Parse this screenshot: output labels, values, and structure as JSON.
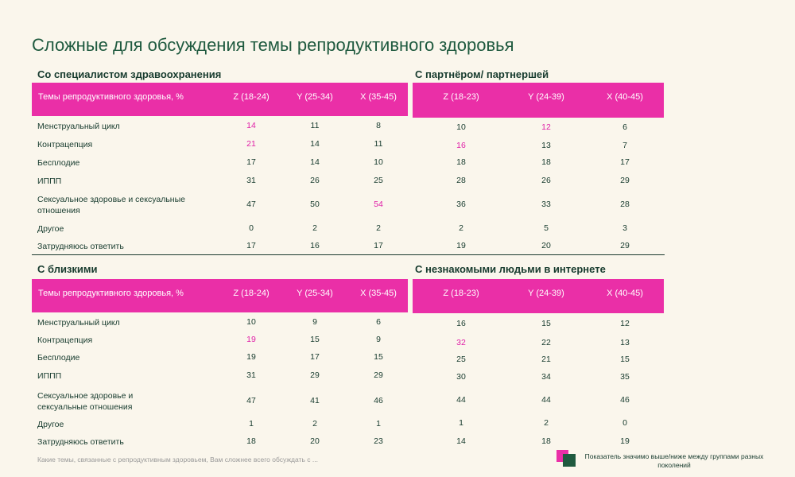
{
  "page": {
    "title": "Сложные для обсуждения темы репродуктивного здоровья",
    "footnote": "Какие темы, связанные с репродуктивным здоровьем, Вам сложнее всего обсуждать с ...",
    "legend_text": "Показатель значимо выше/ниже между группами разных поколений",
    "colors": {
      "header_bg": "#ea2fa7",
      "highlight": "#e020a8",
      "text": "#173b2e",
      "background": "#faf6ec"
    }
  },
  "labels": {
    "topic_header": "Темы репродуктивного здоровья, %",
    "health_rows": [
      "Менструальный цикл",
      "Контрацепция",
      "Бесплодие",
      "ИППП",
      "Сексуальное здоровье и сексуальные отношения",
      "Другое",
      "Затрудняюсь ответить"
    ],
    "close_rows": [
      "Менструальный цикл",
      "Контрацепция",
      "Бесплодие",
      "ИППП",
      "Сексуальное здоровье и сексуальные отношения",
      "Другое",
      "Затрудняюсь ответить"
    ]
  },
  "health": {
    "title": "Со специалистом здравоохранения",
    "cols": [
      "Z (18-24)",
      "Y (25-34)",
      "X (35-45)"
    ],
    "values": [
      [
        "14",
        "11",
        "8"
      ],
      [
        "21",
        "14",
        "11"
      ],
      [
        "17",
        "14",
        "10"
      ],
      [
        "31",
        "26",
        "25"
      ],
      [
        "47",
        "50",
        "54"
      ],
      [
        "0",
        "2",
        "2"
      ],
      [
        "17",
        "16",
        "17"
      ]
    ],
    "highlights": [
      [
        0,
        0
      ],
      [
        1,
        0
      ],
      [
        4,
        2
      ]
    ]
  },
  "partner": {
    "title": "С партнёром/ партнершей",
    "cols": [
      "Z (18-23)",
      "Y (24-39)",
      "X (40-45)"
    ],
    "values": [
      [
        "10",
        "12",
        "6"
      ],
      [
        "16",
        "13",
        "7"
      ],
      [
        "18",
        "18",
        "17"
      ],
      [
        "28",
        "26",
        "29"
      ],
      [
        "36",
        "33",
        "28"
      ],
      [
        "2",
        "5",
        "3"
      ],
      [
        "19",
        "20",
        "29"
      ]
    ],
    "highlights": [
      [
        0,
        1
      ],
      [
        1,
        0
      ]
    ]
  },
  "close": {
    "title": "С близкими",
    "cols": [
      "Z (18-24)",
      "Y (25-34)",
      "X (35-45)"
    ],
    "values": [
      [
        "10",
        "9",
        "6"
      ],
      [
        "19",
        "15",
        "9"
      ],
      [
        "19",
        "17",
        "15"
      ],
      [
        "31",
        "29",
        "29"
      ],
      [
        "47",
        "41",
        "46"
      ],
      [
        "1",
        "2",
        "1"
      ],
      [
        "18",
        "20",
        "23"
      ]
    ],
    "highlights": [
      [
        1,
        0
      ]
    ]
  },
  "internet": {
    "title": "С незнакомыми людьми в интернете",
    "cols": [
      "Z (18-23)",
      "Y (24-39)",
      "X (40-45)"
    ],
    "values": [
      [
        "16",
        "15",
        "12"
      ],
      [
        "32",
        "22",
        "13"
      ],
      [
        "25",
        "21",
        "15"
      ],
      [
        "30",
        "34",
        "35"
      ],
      [
        "44",
        "44",
        "46"
      ],
      [
        "1",
        "2",
        "0"
      ],
      [
        "14",
        "18",
        "19"
      ]
    ],
    "highlights": [
      [
        1,
        0
      ]
    ]
  }
}
